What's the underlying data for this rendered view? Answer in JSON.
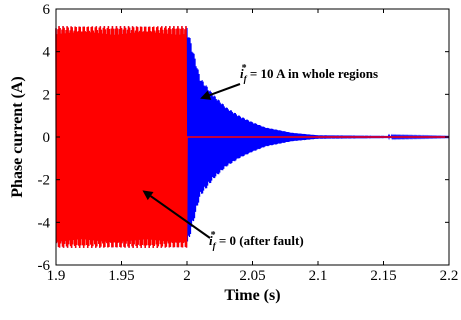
{
  "chart_data": {
    "type": "line",
    "title": "",
    "xlabel": "Time (s)",
    "ylabel": "Phase current (A)",
    "xlim": [
      1.9,
      2.2
    ],
    "ylim": [
      -6,
      6
    ],
    "xticks": [
      "1.9",
      "1.95",
      "2",
      "2.05",
      "2.1",
      "2.15",
      "2.2"
    ],
    "yticks": [
      "6",
      "4",
      "2",
      "0",
      "-2",
      "-4",
      "-6"
    ],
    "grid": false,
    "series": [
      {
        "color": "#0000ff",
        "description_points": {
          "x": [
            1.9,
            2.0,
            2.01,
            2.02,
            2.03,
            2.04,
            2.05,
            2.06,
            2.08,
            2.1,
            2.2
          ],
          "amplitude": [
            5.2,
            5.2,
            2.8,
            2.0,
            1.4,
            1.0,
            0.7,
            0.45,
            0.2,
            0.08,
            0.02
          ]
        }
      },
      {
        "color": "#ff0000",
        "description_points": {
          "x": [
            1.9,
            2.0,
            2.0,
            2.2
          ],
          "amplitude": [
            5.2,
            5.2,
            0.0,
            0.0
          ]
        }
      }
    ],
    "annotations": [
      {
        "text_main": "i",
        "text_sub": "f",
        "text_sup": "*",
        "text_rest": " = 10 A in whole regions",
        "arrow_to": [
          2.01,
          1.8
        ]
      },
      {
        "text_main": "i",
        "text_sub": "f",
        "text_sup": "*",
        "text_rest": " = 0 (after fault)",
        "arrow_to": [
          1.966,
          -2.5
        ]
      }
    ]
  }
}
